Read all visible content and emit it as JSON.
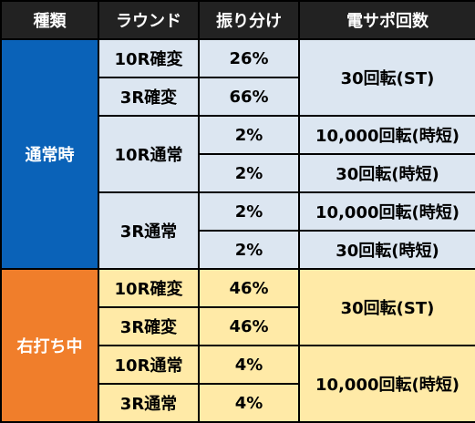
{
  "header": [
    "種類",
    "ラウンド",
    "振り分け",
    "電サポ回数"
  ],
  "groups": [
    {
      "label": "通常時",
      "rows": [
        {
          "round": "10R確変",
          "share": "26%",
          "support": "30回転(ST)"
        },
        {
          "round": "3R確変",
          "share": "66%",
          "support": ""
        },
        {
          "round": "10R通常",
          "share": "2%",
          "support": "10,000回転(時短)"
        },
        {
          "round": "",
          "share": "2%",
          "support": "30回転(時短)"
        },
        {
          "round": "3R通常",
          "share": "2%",
          "support": "10,000回転(時短)"
        },
        {
          "round": "",
          "share": "2%",
          "support": "30回転(時短)"
        }
      ]
    },
    {
      "label": "右打ち中",
      "rows": [
        {
          "round": "10R確変",
          "share": "46%",
          "support": "30回転(ST)"
        },
        {
          "round": "3R確変",
          "share": "46%",
          "support": ""
        },
        {
          "round": "10R通常",
          "share": "4%",
          "support": "10,000回転(時短)"
        },
        {
          "round": "3R通常",
          "share": "4%",
          "support": ""
        }
      ]
    }
  ],
  "colors": {
    "header_bg": "#222222",
    "normal_group": "#0a62b8",
    "right_group": "#f07e2b",
    "normal_cells": "#dce6f1",
    "right_cells": "#ffeaa7"
  }
}
